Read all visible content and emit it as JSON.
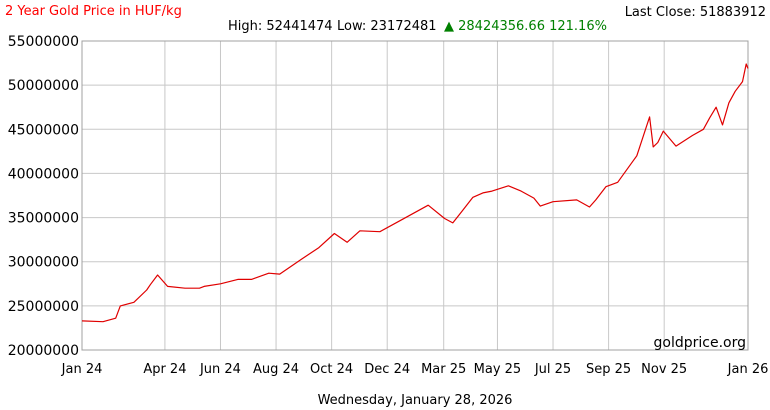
{
  "header": {
    "title": "2 Year Gold Price in HUF/kg",
    "last_close_label": "Last Close: 51883912",
    "high_label": "High: 52441474",
    "low_label": "Low: 23172481",
    "change_text": "▲ 28424356.66 121.16%"
  },
  "watermark": "goldprice.org",
  "date_caption": "Wednesday, January 28, 2026",
  "colors": {
    "title": "#ff0000",
    "line": "#e00000",
    "change": "#008000",
    "grid": "#c8c8c8",
    "text": "#000000"
  },
  "chart_data": {
    "type": "line",
    "title": "2 Year Gold Price in HUF/kg",
    "xlabel": "",
    "ylabel": "",
    "ylim": [
      20000000,
      55000000
    ],
    "yticks": [
      20000000,
      25000000,
      30000000,
      35000000,
      40000000,
      45000000,
      50000000,
      55000000
    ],
    "ytick_labels": [
      "20000000",
      "25000000",
      "30000000",
      "35000000",
      "40000000",
      "45000000",
      "50000000",
      "55000000"
    ],
    "xtick_labels": [
      "Jan 24",
      "Apr 24",
      "Jun 24",
      "Aug 24",
      "Oct 24",
      "Dec 24",
      "Mar 25",
      "May 25",
      "Jul 25",
      "Sep 25",
      "Nov 25",
      "Jan 26"
    ],
    "xtick_dates": [
      "2024-01-28",
      "2024-04-28",
      "2024-06-28",
      "2024-08-28",
      "2024-10-28",
      "2024-12-28",
      "2025-02-28",
      "2025-04-28",
      "2025-06-28",
      "2025-08-28",
      "2025-10-28",
      "2026-01-28"
    ],
    "grid": true,
    "series": [
      {
        "name": "",
        "x": [
          "2024-01-28",
          "2024-02-20",
          "2024-03-05",
          "2024-03-10",
          "2024-03-25",
          "2024-04-08",
          "2024-04-12",
          "2024-04-20",
          "2024-05-01",
          "2024-05-20",
          "2024-06-05",
          "2024-06-10",
          "2024-06-28",
          "2024-07-17",
          "2024-08-01",
          "2024-08-20",
          "2024-09-01",
          "2024-09-25",
          "2024-10-14",
          "2024-10-31",
          "2024-11-14",
          "2024-11-28",
          "2024-12-20",
          "2025-01-12",
          "2025-02-11",
          "2025-03-01",
          "2025-03-10",
          "2025-03-20",
          "2025-04-01",
          "2025-04-12",
          "2025-04-22",
          "2025-05-10",
          "2025-05-24",
          "2025-06-07",
          "2025-06-14",
          "2025-06-28",
          "2025-07-24",
          "2025-08-07",
          "2025-08-14",
          "2025-08-25",
          "2025-09-07",
          "2025-09-28",
          "2025-10-12",
          "2025-10-16",
          "2025-10-21",
          "2025-10-27",
          "2025-11-10",
          "2025-11-28",
          "2025-12-10",
          "2025-12-17",
          "2025-12-24",
          "2025-12-31",
          "2026-01-07",
          "2026-01-14",
          "2026-01-22",
          "2026-01-26",
          "2026-01-28"
        ],
        "values": [
          23300000,
          23200000,
          23600000,
          25000000,
          25400000,
          26800000,
          27400000,
          28500000,
          27200000,
          27000000,
          27000000,
          27200000,
          27500000,
          28000000,
          28000000,
          28700000,
          28600000,
          30300000,
          31600000,
          33200000,
          32200000,
          33500000,
          33400000,
          34700000,
          36400000,
          34900000,
          34400000,
          35700000,
          37300000,
          37800000,
          38000000,
          38600000,
          38000000,
          37200000,
          36300000,
          36800000,
          37000000,
          36200000,
          37000000,
          38500000,
          39000000,
          42000000,
          46400000,
          43000000,
          43500000,
          44800000,
          43100000,
          44300000,
          45000000,
          46300000,
          47500000,
          45500000,
          48000000,
          49300000,
          50400000,
          52400000,
          51883912
        ]
      }
    ]
  }
}
